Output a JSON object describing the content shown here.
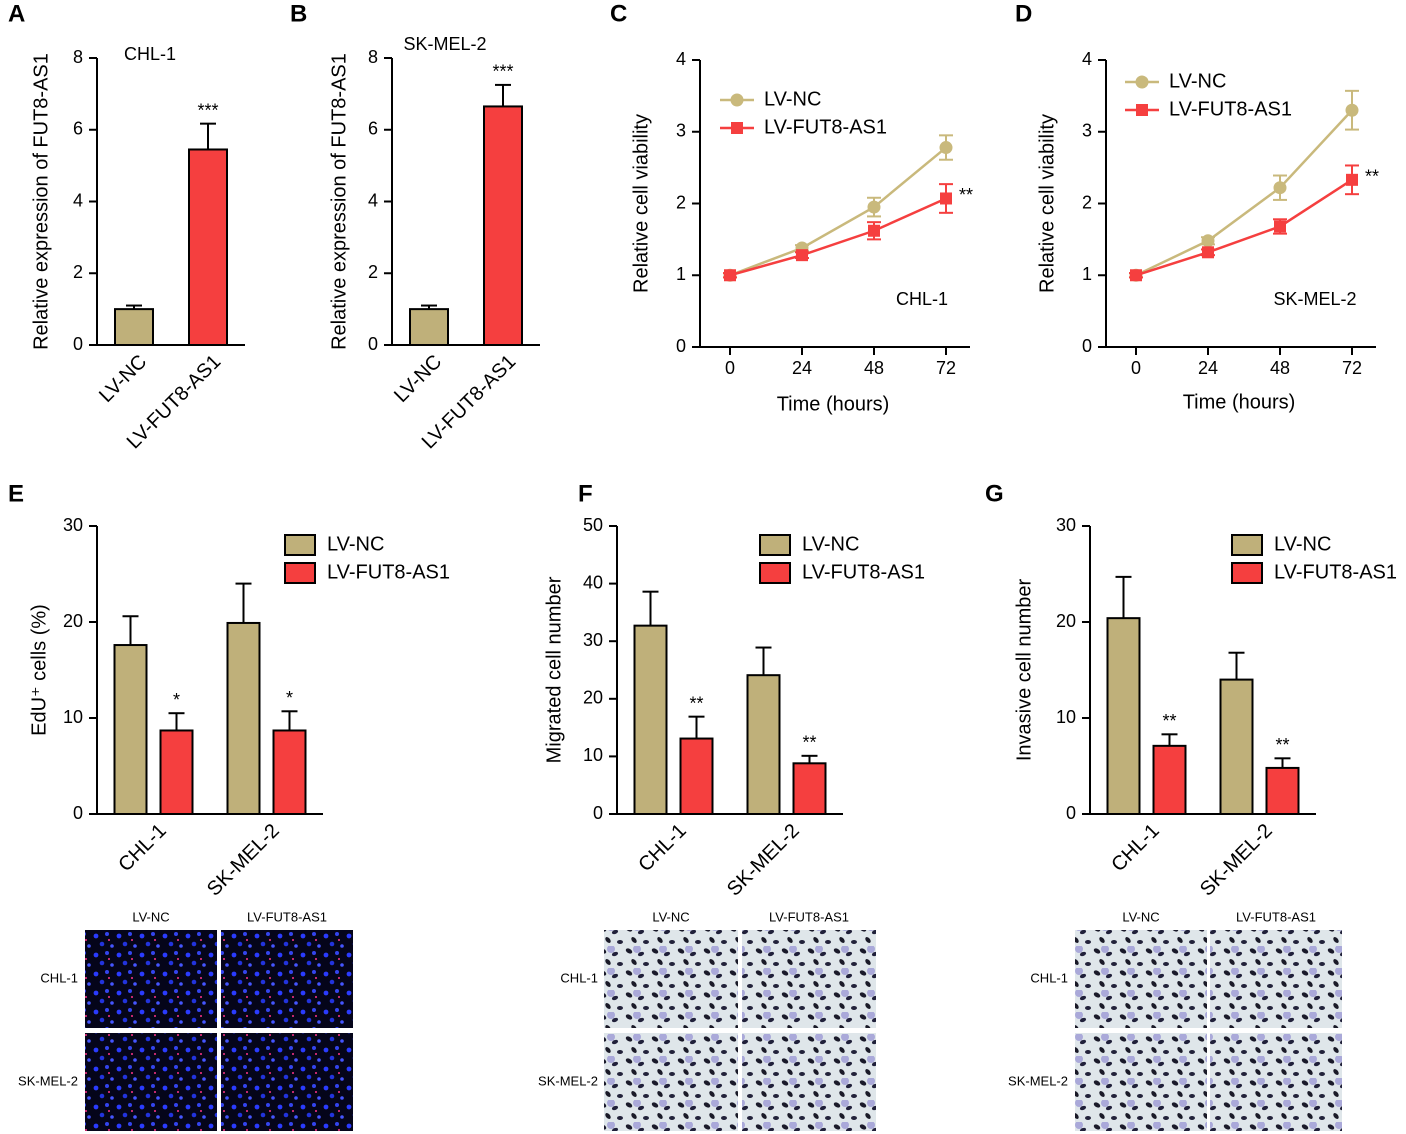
{
  "chart_data": [
    {
      "type": "bar",
      "label": "A",
      "subtitle": "CHL-1",
      "ylabel": "Relative expression of FUT8-AS1",
      "categories": [
        "LV-NC",
        "LV-FUT8-AS1"
      ],
      "values": [
        1,
        5.45
      ],
      "errors": [
        0.1,
        0.72
      ],
      "significance": [
        null,
        "***"
      ],
      "colors": [
        "#bfb07a",
        "#f53f3f"
      ],
      "ylim": [
        0,
        8
      ],
      "yticks": [
        0,
        2,
        4,
        6,
        8
      ]
    },
    {
      "type": "bar",
      "label": "B",
      "subtitle": "SK-MEL-2",
      "ylabel": "Relative expression of FUT8-AS1",
      "categories": [
        "LV-NC",
        "LV-FUT8-AS1"
      ],
      "values": [
        1,
        6.65
      ],
      "errors": [
        0.1,
        0.6
      ],
      "significance": [
        null,
        "***"
      ],
      "colors": [
        "#bfb07a",
        "#f53f3f"
      ],
      "ylim": [
        0,
        8
      ],
      "yticks": [
        0,
        2,
        4,
        6,
        8
      ]
    },
    {
      "type": "line",
      "label": "C",
      "annotation": "CHL-1",
      "xlabel": "Time (hours)",
      "ylabel": "Relative cell viability",
      "x": [
        0,
        24,
        48,
        72
      ],
      "xlim": [
        -10,
        80
      ],
      "xticks": [
        0,
        24,
        48,
        72
      ],
      "ylim": [
        0,
        4
      ],
      "yticks": [
        0,
        1,
        2,
        3,
        4
      ],
      "series": [
        {
          "name": "LV-NC",
          "color": "#c9b97c",
          "marker": "circle",
          "values": [
            1,
            1.38,
            1.95,
            2.78
          ],
          "errors": [
            0.03,
            0.04,
            0.13,
            0.17
          ],
          "significance": [
            null,
            null,
            null,
            null
          ]
        },
        {
          "name": "LV-FUT8-AS1",
          "color": "#f53f3f",
          "marker": "square",
          "values": [
            1,
            1.28,
            1.62,
            2.07
          ],
          "errors": [
            0.03,
            0.04,
            0.12,
            0.2
          ],
          "significance": [
            null,
            null,
            null,
            "**"
          ]
        }
      ]
    },
    {
      "type": "line",
      "label": "D",
      "annotation": "SK-MEL-2",
      "xlabel": "Time (hours)",
      "ylabel": "Relative cell viability",
      "x": [
        0,
        24,
        48,
        72
      ],
      "xlim": [
        -10,
        80
      ],
      "xticks": [
        0,
        24,
        48,
        72
      ],
      "ylim": [
        0,
        4
      ],
      "yticks": [
        0,
        1,
        2,
        3,
        4
      ],
      "series": [
        {
          "name": "LV-NC",
          "color": "#c9b97c",
          "marker": "circle",
          "values": [
            1,
            1.48,
            2.22,
            3.3
          ],
          "errors": [
            0.03,
            0.05,
            0.17,
            0.27
          ],
          "significance": [
            null,
            null,
            null,
            null
          ]
        },
        {
          "name": "LV-FUT8-AS1",
          "color": "#f53f3f",
          "marker": "square",
          "values": [
            1,
            1.32,
            1.68,
            2.33
          ],
          "errors": [
            0.03,
            0.04,
            0.1,
            0.2
          ],
          "significance": [
            null,
            null,
            null,
            "**"
          ]
        }
      ]
    },
    {
      "type": "grouped_bar",
      "label": "E",
      "ylabel": "EdU⁺ cells (%)",
      "categories": [
        "CHL-1",
        "SK-MEL-2"
      ],
      "ylim": [
        0,
        30
      ],
      "yticks": [
        0,
        10,
        20,
        30
      ],
      "series": [
        {
          "name": "LV-NC",
          "color": "#bfb07a",
          "values": [
            17.6,
            19.9
          ],
          "errors": [
            3.0,
            4.1
          ],
          "significance": [
            null,
            null
          ]
        },
        {
          "name": "LV-FUT8-AS1",
          "color": "#f53f3f",
          "values": [
            8.7,
            8.7
          ],
          "errors": [
            1.8,
            2.0
          ],
          "significance": [
            "*",
            "*"
          ]
        }
      ],
      "micrographs": {
        "style": "fluorescence",
        "columns": [
          "LV-NC",
          "LV-FUT8-AS1"
        ],
        "rows": [
          "CHL-1",
          "SK-MEL-2"
        ]
      }
    },
    {
      "type": "grouped_bar",
      "label": "F",
      "ylabel": "Migrated cell number",
      "categories": [
        "CHL-1",
        "SK-MEL-2"
      ],
      "ylim": [
        0,
        50
      ],
      "yticks": [
        0,
        10,
        20,
        30,
        40,
        50
      ],
      "series": [
        {
          "name": "LV-NC",
          "color": "#bfb07a",
          "values": [
            32.7,
            24.1
          ],
          "errors": [
            5.9,
            4.8
          ],
          "significance": [
            null,
            null
          ]
        },
        {
          "name": "LV-FUT8-AS1",
          "color": "#f53f3f",
          "values": [
            13.1,
            8.8
          ],
          "errors": [
            3.8,
            1.3
          ],
          "significance": [
            "**",
            "**"
          ]
        }
      ],
      "micrographs": {
        "style": "stain",
        "columns": [
          "LV-NC",
          "LV-FUT8-AS1"
        ],
        "rows": [
          "CHL-1",
          "SK-MEL-2"
        ]
      }
    },
    {
      "type": "grouped_bar",
      "label": "G",
      "ylabel": "Invasive cell number",
      "categories": [
        "CHL-1",
        "SK-MEL-2"
      ],
      "ylim": [
        0,
        30
      ],
      "yticks": [
        0,
        10,
        20,
        30
      ],
      "series": [
        {
          "name": "LV-NC",
          "color": "#bfb07a",
          "values": [
            20.4,
            14.0
          ],
          "errors": [
            4.3,
            2.8
          ],
          "significance": [
            null,
            null
          ]
        },
        {
          "name": "LV-FUT8-AS1",
          "color": "#f53f3f",
          "values": [
            7.1,
            4.8
          ],
          "errors": [
            1.2,
            1.0
          ],
          "significance": [
            "**",
            "**"
          ]
        }
      ],
      "micrographs": {
        "style": "stain",
        "columns": [
          "LV-NC",
          "LV-FUT8-AS1"
        ],
        "rows": [
          "CHL-1",
          "SK-MEL-2"
        ]
      }
    }
  ]
}
